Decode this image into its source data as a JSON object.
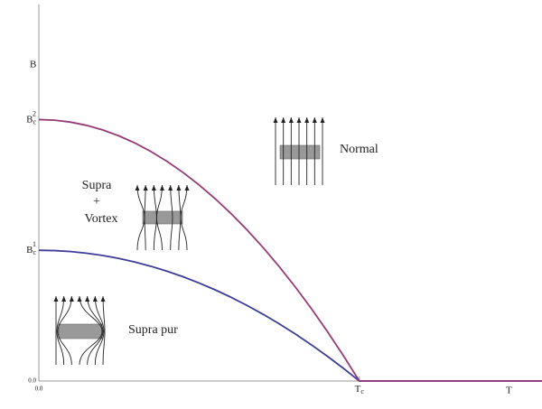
{
  "chart_data": {
    "type": "line",
    "xlabel": "T",
    "ylabel": "B",
    "x": [
      0,
      0.05,
      0.1,
      0.15,
      0.2,
      0.25,
      0.3,
      0.35,
      0.4,
      0.45,
      0.5,
      0.55,
      0.6,
      0.65,
      0.7,
      0.75,
      0.8,
      0.85,
      0.9,
      0.95,
      1.0,
      1.57
    ],
    "series": [
      {
        "color": "#3e3c97",
        "values": [
          0.5,
          0.49875,
          0.495,
          0.48875,
          0.48,
          0.46875,
          0.455,
          0.43875,
          0.42,
          0.39875,
          0.375,
          0.34875,
          0.32,
          0.28875,
          0.255,
          0.21875,
          0.18,
          0.13875,
          0.095,
          0.04875,
          0,
          0
        ]
      },
      {
        "color": "#963a76",
        "values": [
          1,
          0.9975,
          0.99,
          0.9775,
          0.96,
          0.9375,
          0.91,
          0.8775,
          0.84,
          0.7975,
          0.75,
          0.6975,
          0.64,
          0.5775,
          0.51,
          0.4375,
          0.36,
          0.2775,
          0.19,
          0.0975,
          0,
          0
        ]
      }
    ],
    "xlim": [
      0,
      1.57
    ],
    "ylim": [
      0,
      1.44
    ],
    "xticks": [
      {
        "value": 0,
        "label": "0.0"
      },
      {
        "value": 1,
        "label": "Tc"
      }
    ],
    "yticks": [
      {
        "value": 0,
        "label": "0.0"
      },
      {
        "value": 0.5,
        "label": "Bc1"
      },
      {
        "value": 1,
        "label": "Bc2"
      }
    ],
    "annotations": [
      "Normal",
      "Supra",
      "+",
      "Vortex",
      "Supra pur"
    ]
  }
}
